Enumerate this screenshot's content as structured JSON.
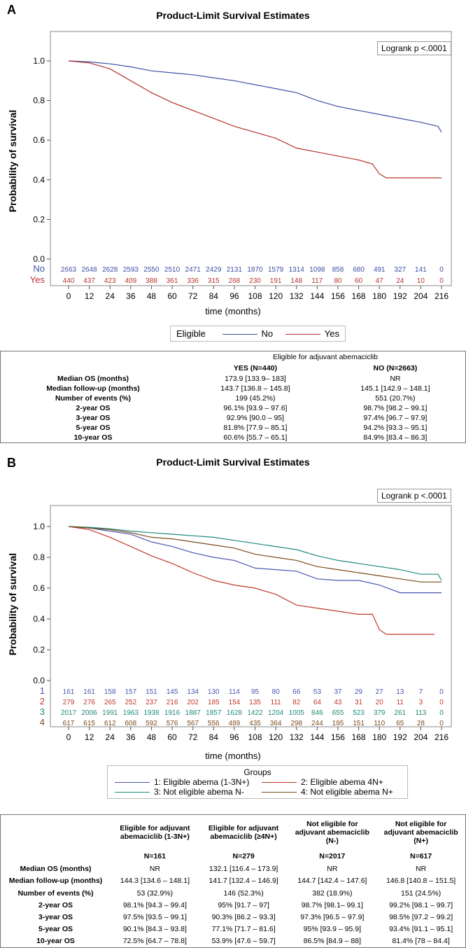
{
  "chart_data": [
    {
      "panel": "A",
      "type": "line",
      "title": "Product-Limit Survival Estimates",
      "xlabel": "time (months)",
      "ylabel": "Probability of survival",
      "annotation": "Logrank p <.0001",
      "xlim": [
        0,
        216
      ],
      "ylim": [
        0,
        1
      ],
      "xticks": [
        "0",
        "12",
        "24",
        "36",
        "48",
        "60",
        "72",
        "84",
        "96",
        "108",
        "120",
        "132",
        "144",
        "156",
        "168",
        "180",
        "192",
        "204",
        "216"
      ],
      "yticks": [
        "0.0",
        "0.2",
        "0.4",
        "0.6",
        "0.8",
        "1.0"
      ],
      "legend": {
        "title": "Eligible",
        "placement": "bottom"
      },
      "series": [
        {
          "name": "No",
          "color": "#3f51a3",
          "points": [
            [
              0,
              1
            ],
            [
              12,
              0.995
            ],
            [
              24,
              0.985
            ],
            [
              36,
              0.97
            ],
            [
              48,
              0.95
            ],
            [
              60,
              0.94
            ],
            [
              72,
              0.93
            ],
            [
              84,
              0.915
            ],
            [
              96,
              0.9
            ],
            [
              108,
              0.88
            ],
            [
              120,
              0.86
            ],
            [
              132,
              0.84
            ],
            [
              144,
              0.8
            ],
            [
              156,
              0.77
            ],
            [
              168,
              0.75
            ],
            [
              180,
              0.73
            ],
            [
              192,
              0.71
            ],
            [
              204,
              0.69
            ],
            [
              214,
              0.67
            ],
            [
              216,
              0.64
            ]
          ],
          "at_risk": [
            "2663",
            "2648",
            "2628",
            "2593",
            "2550",
            "2510",
            "2471",
            "2429",
            "2131",
            "1870",
            "1579",
            "1314",
            "1098",
            "858",
            "680",
            "491",
            "327",
            "141",
            "0"
          ]
        },
        {
          "name": "Yes",
          "color": "#b5332c",
          "points": [
            [
              0,
              1
            ],
            [
              12,
              0.99
            ],
            [
              24,
              0.96
            ],
            [
              36,
              0.9
            ],
            [
              48,
              0.84
            ],
            [
              60,
              0.79
            ],
            [
              72,
              0.75
            ],
            [
              84,
              0.71
            ],
            [
              96,
              0.67
            ],
            [
              108,
              0.64
            ],
            [
              120,
              0.61
            ],
            [
              132,
              0.56
            ],
            [
              144,
              0.54
            ],
            [
              156,
              0.52
            ],
            [
              168,
              0.5
            ],
            [
              176,
              0.48
            ],
            [
              180,
              0.43
            ],
            [
              184,
              0.41
            ],
            [
              216,
              0.41
            ]
          ],
          "at_risk": [
            "440",
            "437",
            "423",
            "409",
            "388",
            "361",
            "336",
            "315",
            "268",
            "230",
            "191",
            "148",
            "117",
            "80",
            "60",
            "47",
            "24",
            "10",
            "0"
          ]
        }
      ]
    },
    {
      "panel": "B",
      "type": "line",
      "title": "Product-Limit Survival Estimates",
      "xlabel": "time (months)",
      "ylabel": "Probability of survival",
      "annotation": "Logrank p <.0001",
      "xlim": [
        0,
        216
      ],
      "ylim": [
        0,
        1
      ],
      "xticks": [
        "0",
        "12",
        "24",
        "36",
        "48",
        "60",
        "72",
        "84",
        "96",
        "108",
        "120",
        "132",
        "144",
        "156",
        "168",
        "180",
        "192",
        "204",
        "216"
      ],
      "yticks": [
        "0.0",
        "0.2",
        "0.4",
        "0.6",
        "0.8",
        "1.0"
      ],
      "legend": {
        "title": "Groups",
        "placement": "bottom"
      },
      "series": [
        {
          "name": "1",
          "label": "1: Eligible abema (1-3N+)",
          "color": "#4a55b0",
          "points": [
            [
              0,
              1
            ],
            [
              12,
              0.99
            ],
            [
              24,
              0.97
            ],
            [
              36,
              0.95
            ],
            [
              48,
              0.9
            ],
            [
              60,
              0.87
            ],
            [
              72,
              0.83
            ],
            [
              84,
              0.8
            ],
            [
              96,
              0.78
            ],
            [
              108,
              0.73
            ],
            [
              120,
              0.72
            ],
            [
              132,
              0.71
            ],
            [
              144,
              0.66
            ],
            [
              156,
              0.65
            ],
            [
              168,
              0.65
            ],
            [
              180,
              0.62
            ],
            [
              192,
              0.57
            ],
            [
              216,
              0.57
            ]
          ],
          "at_risk": [
            "161",
            "161",
            "158",
            "157",
            "151",
            "145",
            "134",
            "130",
            "114",
            "95",
            "80",
            "66",
            "53",
            "37",
            "29",
            "27",
            "13",
            "7",
            "0"
          ]
        },
        {
          "name": "2",
          "label": "2: Eligible abema 4N+",
          "color": "#c0392b",
          "points": [
            [
              0,
              1
            ],
            [
              12,
              0.98
            ],
            [
              24,
              0.93
            ],
            [
              36,
              0.87
            ],
            [
              48,
              0.81
            ],
            [
              60,
              0.76
            ],
            [
              72,
              0.7
            ],
            [
              84,
              0.65
            ],
            [
              96,
              0.62
            ],
            [
              108,
              0.6
            ],
            [
              120,
              0.56
            ],
            [
              132,
              0.49
            ],
            [
              144,
              0.47
            ],
            [
              156,
              0.45
            ],
            [
              168,
              0.43
            ],
            [
              176,
              0.43
            ],
            [
              180,
              0.33
            ],
            [
              184,
              0.3
            ],
            [
              212,
              0.3
            ]
          ],
          "at_risk": [
            "279",
            "276",
            "265",
            "252",
            "237",
            "216",
            "202",
            "185",
            "154",
            "135",
            "111",
            "82",
            "64",
            "43",
            "31",
            "20",
            "11",
            "3",
            "0"
          ]
        },
        {
          "name": "3",
          "label": "3: Not eligible abema N-",
          "color": "#1f8a7c",
          "points": [
            [
              0,
              1
            ],
            [
              12,
              0.995
            ],
            [
              24,
              0.985
            ],
            [
              36,
              0.97
            ],
            [
              48,
              0.96
            ],
            [
              60,
              0.95
            ],
            [
              72,
              0.94
            ],
            [
              84,
              0.93
            ],
            [
              96,
              0.91
            ],
            [
              108,
              0.89
            ],
            [
              120,
              0.87
            ],
            [
              132,
              0.85
            ],
            [
              144,
              0.81
            ],
            [
              156,
              0.78
            ],
            [
              168,
              0.76
            ],
            [
              180,
              0.74
            ],
            [
              192,
              0.72
            ],
            [
              204,
              0.69
            ],
            [
              214,
              0.69
            ],
            [
              216,
              0.65
            ]
          ],
          "at_risk": [
            "2017",
            "2006",
            "1991",
            "1963",
            "1938",
            "1916",
            "1887",
            "1857",
            "1628",
            "1422",
            "1204",
            "1005",
            "846",
            "655",
            "523",
            "379",
            "261",
            "113",
            "0"
          ]
        },
        {
          "name": "4",
          "label": "4: Not eligible abema N+",
          "color": "#7b4b1c",
          "points": [
            [
              0,
              1
            ],
            [
              12,
              0.99
            ],
            [
              24,
              0.98
            ],
            [
              36,
              0.96
            ],
            [
              48,
              0.93
            ],
            [
              60,
              0.92
            ],
            [
              72,
              0.9
            ],
            [
              84,
              0.88
            ],
            [
              96,
              0.86
            ],
            [
              108,
              0.82
            ],
            [
              120,
              0.8
            ],
            [
              132,
              0.78
            ],
            [
              144,
              0.74
            ],
            [
              156,
              0.72
            ],
            [
              168,
              0.7
            ],
            [
              180,
              0.68
            ],
            [
              192,
              0.66
            ],
            [
              204,
              0.64
            ],
            [
              216,
              0.64
            ]
          ],
          "at_risk": [
            "617",
            "615",
            "612",
            "608",
            "592",
            "576",
            "567",
            "556",
            "489",
            "435",
            "364",
            "298",
            "244",
            "195",
            "151",
            "110",
            "65",
            "28",
            "0"
          ]
        }
      ]
    }
  ],
  "tableA": {
    "super_header": "Eligible for adjuvant abemaciclib",
    "headers": [
      "",
      "YES (N=440)",
      "NO (N=2663)"
    ],
    "rows": [
      [
        "Median OS (months)",
        "173.9 [133.9– 183]",
        "NR"
      ],
      [
        "Median follow-up (months)",
        "143.7 [136.8 – 145.8]",
        "145.1 [142.9 – 148.1]"
      ],
      [
        "Number of events (%)",
        "199 (45.2%)",
        "551 (20.7%)"
      ],
      [
        "2-year OS",
        "96.1% [93.9 – 97.6]",
        "98.7% [98.2 – 99.1]"
      ],
      [
        "3-year OS",
        "92.9% [90.0 – 95]",
        "97.4% [96.7 – 97.9]"
      ],
      [
        "5-year OS",
        "81.8% [77.9 – 85.1]",
        "94.2% [93.3 – 95.1]"
      ],
      [
        "10-year OS",
        "60.6% [55.7 – 65.1]",
        "84.9% [83.4 – 86.3]"
      ]
    ]
  },
  "tableB": {
    "headers": [
      "",
      "Eligible for adjuvant abemaciclib (1-3N+)",
      "Eligible for adjuvant abemaciclib (≥4N+)",
      "Not eligible for adjuvant abemaciclib (N-)",
      "Not eligible for adjuvant abemaciclib (N+)"
    ],
    "n": [
      "",
      "N=161",
      "N=279",
      "N=2017",
      "N=617"
    ],
    "rows": [
      [
        "Median OS (months)",
        "NR",
        "132.1 [116.4 – 173.9]",
        "NR",
        "NR"
      ],
      [
        "Median follow-up (months)",
        "144.3 [134.6 – 148.1]",
        "141.7 [132.4 – 146.9]",
        "144.7 [142.4 – 147.6]",
        "146.8 [140.8 – 151.5]"
      ],
      [
        "Number of events (%)",
        "53 (32.9%)",
        "146 (52.3%)",
        "382 (18.9%)",
        "151 (24.5%)"
      ],
      [
        "2-year OS",
        "98.1% [94.3 – 99.4]",
        "95% [91.7 – 97]",
        "98.7% [98.1– 99.1]",
        "99.2% [98.1 – 99.7]"
      ],
      [
        "3-year OS",
        "97.5% [93.5 – 99.1]",
        "90.3% [86.2 – 93.3]",
        "97.3% [96.5 – 97.9]",
        "98.5% [97.2 – 99.2]"
      ],
      [
        "5-year OS",
        "90.1% [84.3 – 93.8]",
        "77.1% [71.7 – 81.6]",
        "95% [93.9 – 95.9]",
        "93.4% [91.1 – 95.1]"
      ],
      [
        "10-year OS",
        "72.5% [64.7 – 78.8]",
        "53.9% [47.6 – 59.7]",
        "86.5% [84.9 – 88]",
        "81.4% [78 – 84.4]"
      ]
    ]
  }
}
